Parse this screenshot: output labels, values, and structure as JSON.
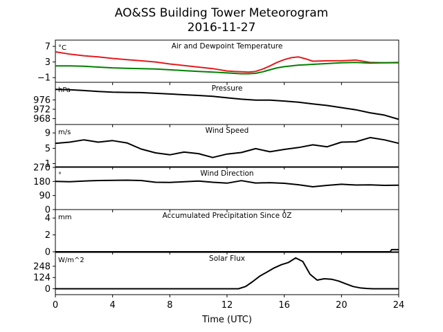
{
  "figure": {
    "title_line1": "AO&SS Building Tower Meteorogram",
    "title_line2": "2016-11-27",
    "xlabel": "Time (UTC)"
  },
  "chart_data": [
    {
      "type": "line",
      "title": "Air and Dewpoint Temperature",
      "unit": "°C",
      "x": [
        0,
        1,
        2,
        3,
        4,
        5,
        6,
        7,
        8,
        9,
        10,
        11,
        12,
        12.5,
        13,
        13.5,
        14,
        14.5,
        15,
        15.5,
        16,
        16.5,
        17,
        17.5,
        18,
        19,
        20,
        21,
        22,
        23,
        24
      ],
      "xlim": [
        0,
        24
      ],
      "xticks": [
        "0",
        "4",
        "8",
        "12",
        "16",
        "20",
        "24"
      ],
      "ylim": [
        -2.2,
        8.6
      ],
      "yticks": [
        "7",
        "3",
        "−1"
      ],
      "grid": false,
      "series": [
        {
          "color": "#e41a1c",
          "values": [
            5.6,
            5.0,
            4.6,
            4.3,
            3.9,
            3.6,
            3.3,
            3.0,
            2.5,
            2.1,
            1.7,
            1.3,
            0.7,
            0.6,
            0.5,
            0.4,
            0.6,
            1.2,
            2.0,
            2.9,
            3.6,
            4.1,
            4.3,
            3.8,
            3.2,
            3.3,
            3.3,
            3.5,
            2.9,
            2.8,
            2.9
          ]
        },
        {
          "color": "#008000",
          "values": [
            2.0,
            2.0,
            1.9,
            1.7,
            1.5,
            1.4,
            1.3,
            1.2,
            1.0,
            0.8,
            0.6,
            0.4,
            0.2,
            0.1,
            0.0,
            0.0,
            0.1,
            0.5,
            1.0,
            1.5,
            1.8,
            2.0,
            2.2,
            2.3,
            2.4,
            2.6,
            2.8,
            2.9,
            2.7,
            2.8,
            2.8
          ]
        }
      ]
    },
    {
      "type": "line",
      "title": "Pressure",
      "unit": "hPa",
      "x": [
        0,
        1,
        2,
        3,
        4,
        5,
        6,
        7,
        8,
        9,
        10,
        11,
        12,
        13,
        14,
        15,
        16,
        17,
        18,
        19,
        20,
        21,
        22,
        23,
        24
      ],
      "xlim": [
        0,
        24
      ],
      "ylim": [
        965.5,
        983.5
      ],
      "yticks": [
        "976",
        "972",
        "968"
      ],
      "series": [
        {
          "color": "#000000",
          "values": [
            980.5,
            980.3,
            980.0,
            979.6,
            979.3,
            979.2,
            979.1,
            978.8,
            978.5,
            978.2,
            977.9,
            977.5,
            976.9,
            976.3,
            975.9,
            975.9,
            975.5,
            975.0,
            974.3,
            973.6,
            972.7,
            971.8,
            970.5,
            969.5,
            967.7
          ]
        }
      ]
    },
    {
      "type": "line",
      "title": "Wind Speed",
      "unit": "m/s",
      "x": [
        0,
        1,
        2,
        3,
        4,
        5,
        6,
        7,
        8,
        9,
        10,
        11,
        12,
        13,
        14,
        15,
        16,
        17,
        18,
        19,
        20,
        21,
        22,
        23,
        24
      ],
      "xlim": [
        0,
        24
      ],
      "ylim": [
        0.2,
        11.2
      ],
      "yticks": [
        "9",
        "5",
        "1"
      ],
      "series": [
        {
          "color": "#000000",
          "values": [
            6.3,
            6.6,
            7.2,
            6.6,
            7.0,
            6.4,
            4.8,
            3.8,
            3.3,
            4.0,
            3.6,
            2.6,
            3.5,
            3.9,
            4.9,
            4.1,
            4.7,
            5.2,
            5.9,
            5.4,
            6.6,
            6.7,
            7.8,
            7.2,
            6.3
          ]
        }
      ]
    },
    {
      "type": "line",
      "title": "Wind Direction",
      "unit": "°",
      "x": [
        0,
        1,
        2,
        3,
        4,
        5,
        6,
        7,
        8,
        9,
        10,
        11,
        12,
        13,
        14,
        15,
        16,
        17,
        18,
        19,
        20,
        21,
        22,
        23,
        24
      ],
      "xlim": [
        0,
        24
      ],
      "ylim": [
        0,
        270
      ],
      "yticks": [
        "270",
        "180",
        "90",
        "0"
      ],
      "series": [
        {
          "color": "#000000",
          "values": [
            180,
            178,
            183,
            186,
            187,
            188,
            186,
            175,
            174,
            178,
            183,
            175,
            169,
            185,
            170,
            172,
            168,
            159,
            146,
            155,
            162,
            157,
            158,
            155,
            156
          ]
        }
      ]
    },
    {
      "type": "line",
      "title": "Accumulated Precipitation Since 0Z",
      "unit": "mm",
      "x": [
        0,
        23.4,
        23.5,
        24
      ],
      "xlim": [
        0,
        24
      ],
      "ylim": [
        0,
        5
      ],
      "yticks": [
        "4",
        "2",
        "0"
      ],
      "series": [
        {
          "color": "#000000",
          "values": [
            0,
            0,
            0.25,
            0.25
          ]
        }
      ]
    },
    {
      "type": "line",
      "title": "Solar Flux",
      "unit": "W/m^2",
      "x": [
        0,
        12,
        12.8,
        13.3,
        13.8,
        14.3,
        14.8,
        15.3,
        15.8,
        16.3,
        16.8,
        17.3,
        17.8,
        18.3,
        18.8,
        19.3,
        19.8,
        20.3,
        20.8,
        21.3,
        21.8,
        22.2,
        24
      ],
      "xlim": [
        0,
        24
      ],
      "ylim": [
        -65,
        400
      ],
      "yticks": [
        "248",
        "124",
        "0"
      ],
      "series": [
        {
          "color": "#000000",
          "values": [
            0,
            0,
            0,
            25,
            80,
            140,
            185,
            230,
            265,
            290,
            340,
            300,
            160,
            95,
            110,
            105,
            85,
            55,
            25,
            10,
            3,
            0,
            0
          ]
        }
      ]
    }
  ]
}
